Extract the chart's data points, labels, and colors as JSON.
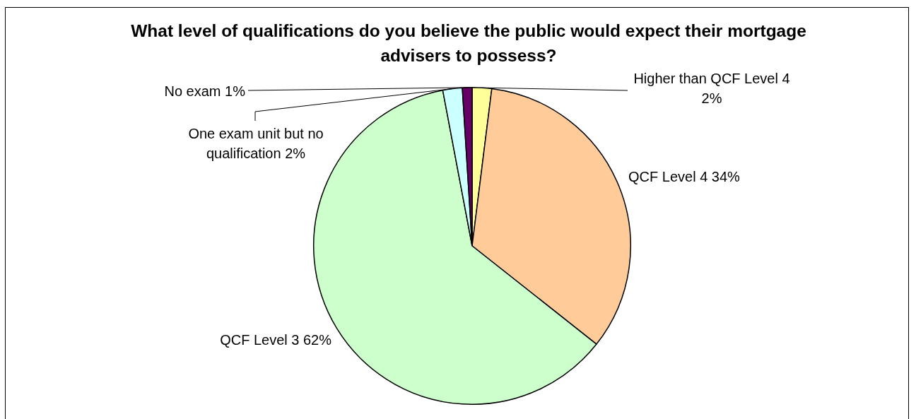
{
  "chart_data": {
    "type": "pie",
    "title": "What level of qualifications do you believe the public would expect their mortgage advisers to possess?",
    "categories": [
      "Higher than QCF Level 4",
      "QCF Level 4",
      "QCF Level 3",
      "One exam unit but no qualification",
      "No exam"
    ],
    "values": [
      2,
      34,
      62,
      2,
      1
    ],
    "colors": [
      "#ffff99",
      "#ffcc99",
      "#ccffcc",
      "#ccffff",
      "#660066"
    ],
    "value_labels": [
      "2%",
      "34%",
      "62%",
      "2%",
      "1%"
    ]
  }
}
